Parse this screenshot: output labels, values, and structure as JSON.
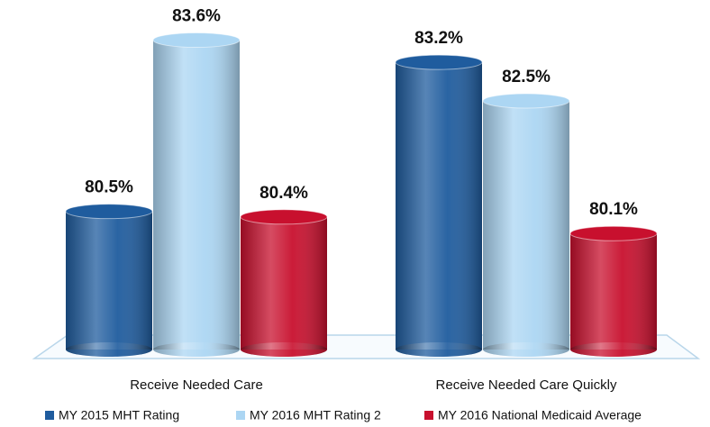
{
  "chart_data": {
    "type": "bar",
    "categories": [
      "Receive Needed Care",
      "Receive Needed Care Quickly"
    ],
    "series": [
      {
        "name": "MY 2015 MHT Rating",
        "color": "#1f5c9e",
        "values": [
          80.5,
          83.2
        ],
        "value_labels": [
          "80.5%",
          "83.2%"
        ]
      },
      {
        "name": "MY 2016 MHT Rating 2",
        "color": "#acd6f3",
        "values": [
          83.6,
          82.5
        ],
        "value_labels": [
          "83.6%",
          "82.5%"
        ]
      },
      {
        "name": "MY 2016 National Medicaid Average",
        "color": "#c8102e",
        "values": [
          80.4,
          80.1
        ],
        "value_labels": [
          "80.4%",
          "80.1%"
        ]
      }
    ],
    "ylim": [
      78,
      84
    ]
  }
}
